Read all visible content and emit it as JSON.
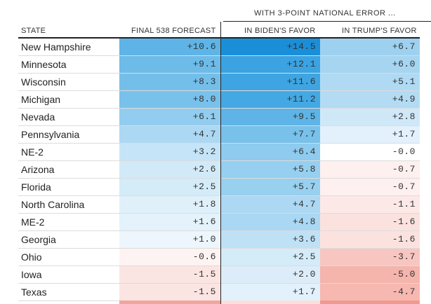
{
  "table": {
    "group_label": "WITH 3-POINT NATIONAL ERROR ...",
    "columns": {
      "state": "STATE",
      "forecast": "FINAL 538 FORECAST",
      "biden": "IN BIDEN'S FAVOR",
      "trump": "IN TRUMP'S FAVOR"
    },
    "rows": [
      {
        "state": "New Hampshire",
        "forecast": "+10.6",
        "biden": "+14.5",
        "trump": "+6.7",
        "colors": {
          "forecast": "#5eb4e6",
          "biden": "#1a8fd8",
          "trump": "#9ed1f0"
        }
      },
      {
        "state": "Minnesota",
        "forecast": "+9.1",
        "biden": "+12.1",
        "trump": "+6.0",
        "colors": {
          "forecast": "#6dbbe9",
          "biden": "#3ba3e2",
          "trump": "#a6d5f2"
        }
      },
      {
        "state": "Wisconsin",
        "forecast": "+8.3",
        "biden": "+11.6",
        "trump": "+5.1",
        "colors": {
          "forecast": "#74bfea",
          "biden": "#3fa5e2",
          "trump": "#b0daf3"
        }
      },
      {
        "state": "Michigan",
        "forecast": "+8.0",
        "biden": "+11.2",
        "trump": "+4.9",
        "colors": {
          "forecast": "#78c1eb",
          "biden": "#44a8e3",
          "trump": "#b3dbf3"
        }
      },
      {
        "state": "Nevada",
        "forecast": "+6.1",
        "biden": "+9.5",
        "trump": "+2.8",
        "colors": {
          "forecast": "#92cdef",
          "biden": "#5eb4e6",
          "trump": "#cfe8f8"
        }
      },
      {
        "state": "Pennsylvania",
        "forecast": "+4.7",
        "biden": "+7.7",
        "trump": "+1.7",
        "colors": {
          "forecast": "#acd8f3",
          "biden": "#78c1eb",
          "trump": "#e2f1fb"
        }
      },
      {
        "state": "NE-2",
        "forecast": "+3.2",
        "biden": "+6.4",
        "trump": "-0.0",
        "colors": {
          "forecast": "#c6e4f7",
          "biden": "#8ecbee",
          "trump": "#ffffff"
        }
      },
      {
        "state": "Arizona",
        "forecast": "+2.6",
        "biden": "+5.8",
        "trump": "-0.7",
        "colors": {
          "forecast": "#d2eaf8",
          "biden": "#96cfef",
          "trump": "#fdf0ef"
        }
      },
      {
        "state": "Florida",
        "forecast": "+2.5",
        "biden": "+5.7",
        "trump": "-0.7",
        "colors": {
          "forecast": "#d4ebf8",
          "biden": "#98d0ef",
          "trump": "#fdf0ef"
        }
      },
      {
        "state": "North Carolina",
        "forecast": "+1.8",
        "biden": "+4.7",
        "trump": "-1.1",
        "colors": {
          "forecast": "#e0f0fa",
          "biden": "#acd8f3",
          "trump": "#fce9e7"
        }
      },
      {
        "state": "ME-2",
        "forecast": "+1.6",
        "biden": "+4.8",
        "trump": "-1.6",
        "colors": {
          "forecast": "#e3f2fb",
          "biden": "#aad7f3",
          "trump": "#fbe2df"
        }
      },
      {
        "state": "Georgia",
        "forecast": "+1.0",
        "biden": "+3.6",
        "trump": "-1.6",
        "colors": {
          "forecast": "#edf6fc",
          "biden": "#bfe1f6",
          "trump": "#fbe2df"
        }
      },
      {
        "state": "Ohio",
        "forecast": "-0.6",
        "biden": "+2.5",
        "trump": "-3.7",
        "colors": {
          "forecast": "#fdf3f2",
          "biden": "#d4ebf8",
          "trump": "#f8c6c0"
        }
      },
      {
        "state": "Iowa",
        "forecast": "-1.5",
        "biden": "+2.0",
        "trump": "-5.0",
        "colors": {
          "forecast": "#fbe5e2",
          "biden": "#dcedf9",
          "trump": "#f5b4ac"
        }
      },
      {
        "state": "Texas",
        "forecast": "-1.5",
        "biden": "+1.7",
        "trump": "-4.7",
        "colors": {
          "forecast": "#fbe5e2",
          "biden": "#e2f1fb",
          "trump": "#f6b8b1"
        }
      }
    ],
    "next_row_colors": {
      "forecast": "#f0a69c",
      "biden": "#fbe0dc",
      "trump": "#ef9a8f"
    }
  }
}
